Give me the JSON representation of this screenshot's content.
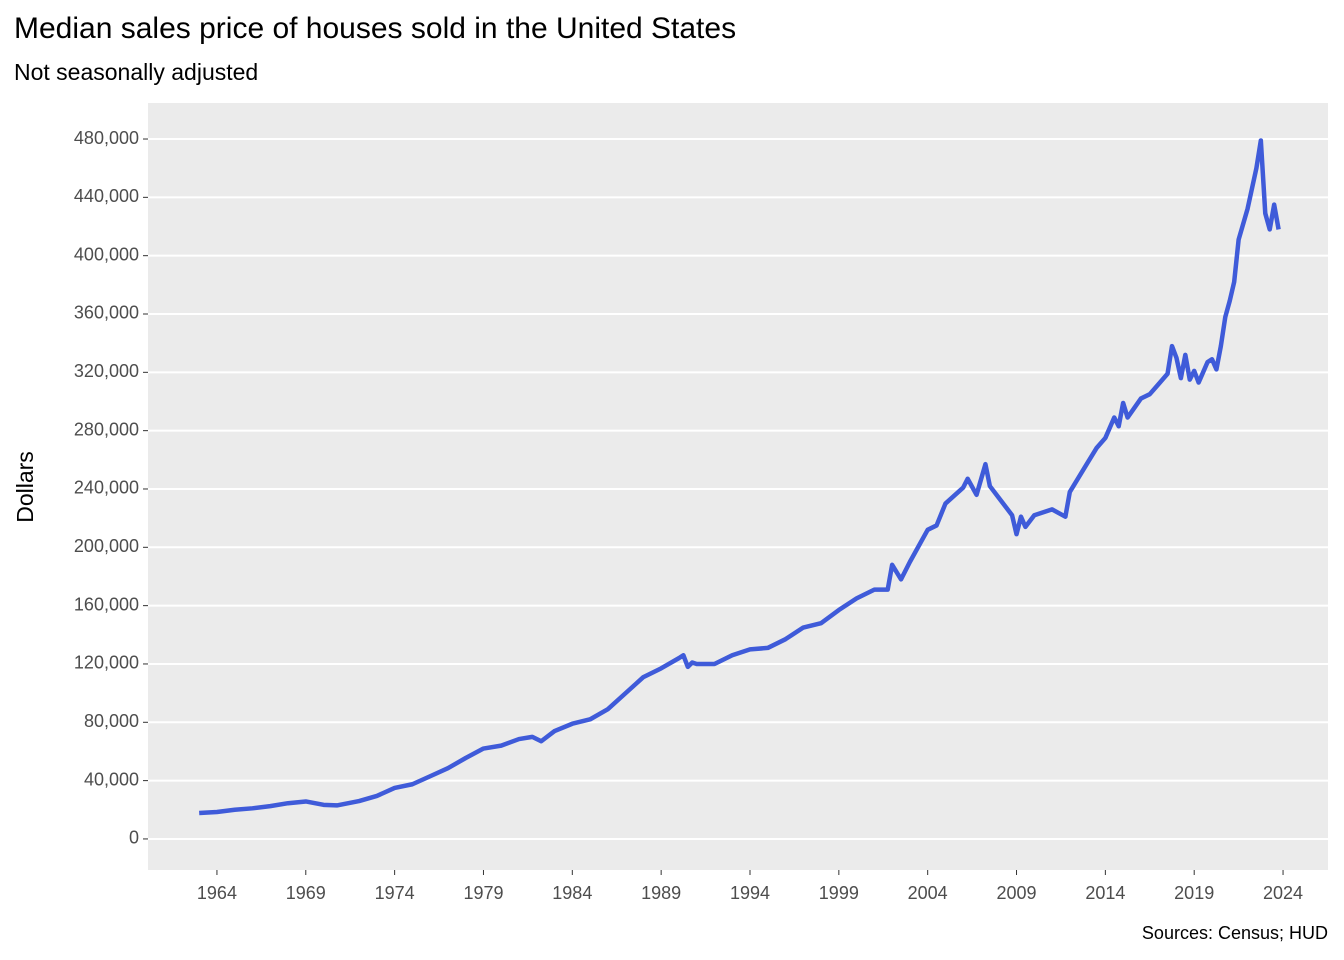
{
  "chart_data": {
    "type": "line",
    "title": "Median sales price of houses sold in the United States",
    "subtitle": "Not seasonally adjusted",
    "y_label": "Dollars",
    "caption": "Sources: Census; HUD",
    "x": [
      1963,
      1964,
      1965,
      1966,
      1967,
      1968,
      1969,
      1970,
      1970.75,
      1972,
      1973,
      1974,
      1975,
      1976,
      1977,
      1978,
      1979,
      1980,
      1981,
      1981.75,
      1982.25,
      1983,
      1984,
      1985,
      1986,
      1987,
      1988,
      1989,
      1990,
      1990.25,
      1990.5,
      1990.75,
      1991,
      1992,
      1993,
      1994,
      1995,
      1996,
      1997,
      1998,
      1999,
      2000,
      2001,
      2001.75,
      2002,
      2002.5,
      2003,
      2004,
      2004.5,
      2005,
      2006,
      2006.25,
      2006.75,
      2007.25,
      2007.5,
      2008,
      2008.75,
      2009,
      2009.25,
      2009.5,
      2010,
      2011,
      2011.75,
      2012,
      2012.5,
      2013,
      2013.5,
      2014,
      2014.5,
      2014.75,
      2015,
      2015.25,
      2016,
      2016.5,
      2017,
      2017.5,
      2017.75,
      2018,
      2018.25,
      2018.5,
      2018.75,
      2019,
      2019.25,
      2019.5,
      2019.75,
      2020,
      2020.25,
      2020.5,
      2020.75,
      2021,
      2021.25,
      2021.5,
      2022,
      2022.5,
      2022.75,
      2023,
      2023.25,
      2023.5,
      2023.75
    ],
    "series": [
      {
        "color": "#3f5bd9",
        "values": [
          17800,
          18500,
          20000,
          21000,
          22500,
          24500,
          25700,
          23400,
          23000,
          26000,
          29500,
          35000,
          37500,
          43000,
          48500,
          55500,
          62000,
          64000,
          68500,
          70000,
          67000,
          74000,
          79000,
          82000,
          89000,
          100000,
          111000,
          117000,
          124000,
          126000,
          118000,
          121000,
          120000,
          120000,
          126000,
          130000,
          131000,
          137000,
          145000,
          148000,
          157000,
          165000,
          171000,
          171000,
          188000,
          178000,
          190000,
          212000,
          215000,
          230000,
          241000,
          247000,
          236000,
          257000,
          242000,
          234000,
          222000,
          209000,
          221000,
          214000,
          222000,
          226000,
          221000,
          238000,
          248000,
          258000,
          268000,
          275000,
          289000,
          283000,
          299000,
          289000,
          302000,
          305000,
          312000,
          319000,
          338000,
          330000,
          316000,
          332000,
          315000,
          321000,
          313000,
          320000,
          327000,
          329000,
          322000,
          338000,
          358000,
          369000,
          382000,
          411000,
          432000,
          460000,
          479000,
          429000,
          418000,
          435000,
          418000
        ]
      }
    ],
    "xlim": [
      1960.12,
      2026.53
    ],
    "xticks": [
      1964,
      1969,
      1974,
      1979,
      1984,
      1989,
      1994,
      1999,
      2004,
      2009,
      2014,
      2019,
      2024
    ],
    "ylim": [
      -21300,
      504700
    ],
    "yticks": [
      0,
      {
        "value": 40000,
        "label": "40,000"
      },
      {
        "value": 80000,
        "label": "80,000"
      },
      {
        "value": 120000,
        "label": "120,000"
      },
      {
        "value": 160000,
        "label": "160,000"
      },
      {
        "value": 200000,
        "label": "200,000"
      },
      {
        "value": 240000,
        "label": "240,000"
      },
      {
        "value": 280000,
        "label": "280,000"
      },
      {
        "value": 320000,
        "label": "320,000"
      },
      {
        "value": 360000,
        "label": "360,000"
      },
      {
        "value": 400000,
        "label": "400,000"
      },
      {
        "value": 440000,
        "label": "440,000"
      },
      {
        "value": 480000,
        "label": "480,000"
      }
    ],
    "grid": true
  }
}
